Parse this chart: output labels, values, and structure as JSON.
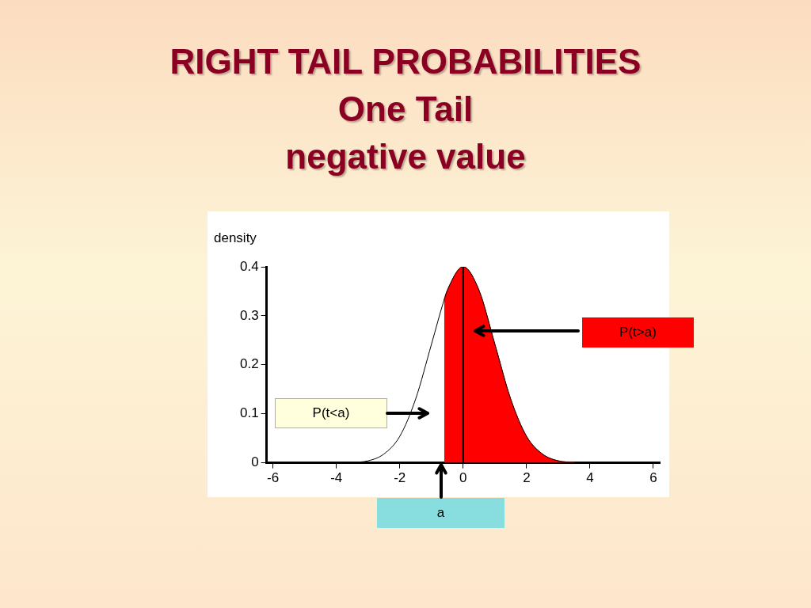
{
  "chart_data": {
    "type": "line",
    "title": "RIGHT TAIL PROBABILITIES",
    "subtitle": "One Tail\nnegative value",
    "ylabel": "density",
    "series": [
      {
        "type": "line",
        "color": "#000000",
        "x": [
          -6,
          -5,
          -4,
          -3.5,
          -3,
          -2.5,
          -2,
          -1.5,
          -1,
          -0.6,
          -0.5,
          0,
          0.5,
          1,
          1.5,
          2,
          2.5,
          3,
          3.5,
          4,
          5,
          6
        ],
        "values": [
          0,
          0,
          0,
          0.001,
          0.004,
          0.018,
          0.054,
          0.13,
          0.242,
          0.333,
          0.352,
          0.4,
          0.352,
          0.242,
          0.13,
          0.054,
          0.018,
          0.004,
          0.001,
          0,
          0,
          0
        ]
      },
      {
        "type": "area",
        "color": "#ff0000",
        "x": [
          -0.6,
          -0.5,
          0,
          0.5,
          1,
          1.5,
          2,
          2.5,
          3,
          3.5
        ],
        "values": [
          0.333,
          0.352,
          0.4,
          0.352,
          0.242,
          0.13,
          0.054,
          0.018,
          0.004,
          0.001
        ]
      }
    ],
    "xlim": [
      -6.2,
      6.2
    ],
    "xticks": [
      -6,
      -4,
      -2,
      0,
      2,
      4,
      6
    ],
    "ylim": [
      0,
      0.4
    ],
    "yticks": [
      0,
      0.1,
      0.2,
      0.3,
      0.4
    ],
    "ref_lines": [
      {
        "axis": "x",
        "value": 0,
        "color": "#000000"
      }
    ],
    "annotations": [
      "P(t>a)",
      "P(t<a)",
      "a"
    ],
    "grid": false,
    "legend": false,
    "marker": "none",
    "line_style": "solid"
  }
}
